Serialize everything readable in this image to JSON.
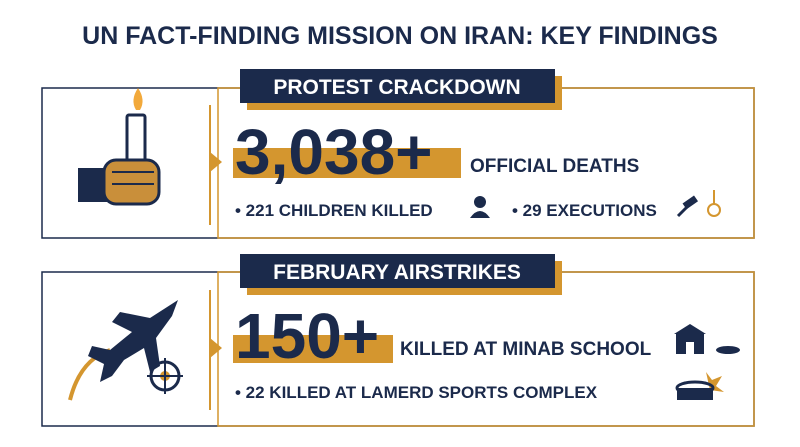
{
  "title": "UN FACT-FINDING MISSION ON IRAN: KEY FINDINGS",
  "sections": [
    {
      "heading": "PROTEST CRACKDOWN",
      "figure": "3,038+",
      "figure_label": "OFFICIAL DEATHS",
      "bullets": [
        "• 221 CHILDREN KILLED",
        "• 29 EXECUTIONS"
      ]
    },
    {
      "heading": "FEBRUARY AIRSTRIKES",
      "figure": "150+",
      "figure_label": "KILLED AT MINAB SCHOOL",
      "bullets": [
        "• 22 KILLED AT LAMERD SPORTS COMPLEX"
      ]
    }
  ]
}
